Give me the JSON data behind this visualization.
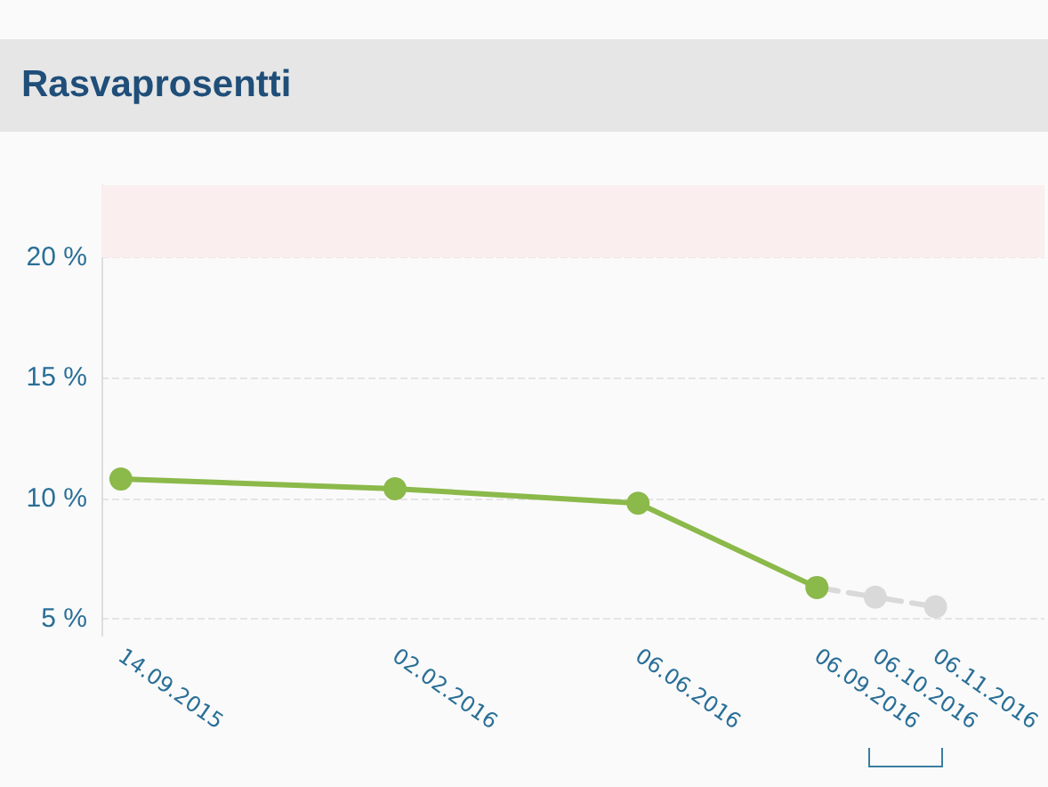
{
  "chart_data": {
    "type": "line",
    "title": "Rasvaprosentti",
    "series": [
      {
        "color": "#8bb94a",
        "line_style": "solid",
        "x": [
          "2015-09-14",
          "2016-02-02",
          "2016-06-06",
          "2016-09-06"
        ],
        "values": [
          10.8,
          10.4,
          9.8,
          6.3
        ]
      },
      {
        "color": "#d9d9d9",
        "line_style": "dashed",
        "x": [
          "2016-09-06",
          "2016-10-06",
          "2016-11-06"
        ],
        "values": [
          6.3,
          5.9,
          5.5
        ]
      }
    ],
    "xlim": [
      "2015-09-04",
      "2017-01-01"
    ],
    "xticks": [
      {
        "value": "2015-09-14",
        "label": "14.09.2015"
      },
      {
        "value": "2016-02-02",
        "label": "02.02.2016"
      },
      {
        "value": "2016-06-06",
        "label": "06.06.2016"
      },
      {
        "value": "2016-09-06",
        "label": "06.09.2016"
      },
      {
        "value": "2016-10-06",
        "label": "06.10.2016"
      },
      {
        "value": "2016-11-06",
        "label": "06.11.2016"
      }
    ],
    "ylim": [
      4.3,
      23
    ],
    "yticks": [
      {
        "value": 5,
        "label": "5 %"
      },
      {
        "value": 10,
        "label": "10 %"
      },
      {
        "value": 15,
        "label": "15 %"
      },
      {
        "value": 20,
        "label": "20 %"
      }
    ],
    "bands": [
      {
        "axis": "y",
        "from": 20,
        "to": 23,
        "color": "#fbeeee"
      }
    ],
    "grid": "y",
    "marker": "circle"
  }
}
